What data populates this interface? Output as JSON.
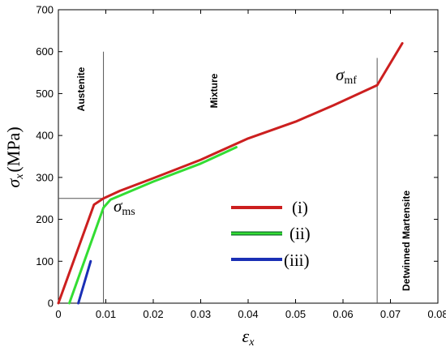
{
  "chart_data": {
    "type": "line",
    "xlabel": "ε",
    "xlabel_sub": "x",
    "ylabel": "σ",
    "ylabel_sub": "x",
    "ylabel_unit": "(MPa)",
    "xlim": [
      0,
      0.08
    ],
    "ylim": [
      0,
      700
    ],
    "x_ticks": [
      0,
      0.01,
      0.02,
      0.03,
      0.04,
      0.05,
      0.06,
      0.07,
      0.08
    ],
    "x_tick_labels": [
      "0",
      "0.01",
      "0.02",
      "0.03",
      "0.04",
      "0.05",
      "0.06",
      "0.07",
      "0.08"
    ],
    "y_ticks": [
      0,
      100,
      200,
      300,
      400,
      500,
      600,
      700
    ],
    "y_tick_labels": [
      "0",
      "100",
      "200",
      "300",
      "400",
      "500",
      "600",
      "700"
    ],
    "grid": false,
    "legend_position": "center",
    "series": [
      {
        "name": "(i)",
        "color": "#cc1f1f",
        "x": [
          0,
          0.0075,
          0.0095,
          0.013,
          0.02,
          0.03,
          0.04,
          0.05,
          0.058,
          0.0672,
          0.0725
        ],
        "y": [
          0,
          235,
          250,
          268,
          298,
          342,
          393,
          433,
          472,
          520,
          620
        ]
      },
      {
        "name": "(ii)",
        "color": "#33dd33",
        "x": [
          0.0023,
          0.0095,
          0.011,
          0.02,
          0.03,
          0.0375
        ],
        "y": [
          0,
          228,
          247,
          290,
          333,
          372
        ]
      },
      {
        "name": "(iii)",
        "color": "#1a2fb5",
        "x": [
          0.0042,
          0.0068
        ],
        "y": [
          0,
          100
        ]
      }
    ],
    "vertical_lines": [
      {
        "x": 0.0095,
        "y_top": 600
      },
      {
        "x": 0.0672,
        "y_top": 585
      }
    ],
    "horizontal_guide": {
      "y": 250,
      "x_from": 0,
      "x_to": 0.0095
    },
    "region_labels": [
      "Austenite",
      "Mixture",
      "Detwinned Martensite"
    ],
    "annotations": [
      {
        "symbol": "σ",
        "sub": "ms"
      },
      {
        "symbol": "σ",
        "sub": "mf"
      }
    ]
  }
}
